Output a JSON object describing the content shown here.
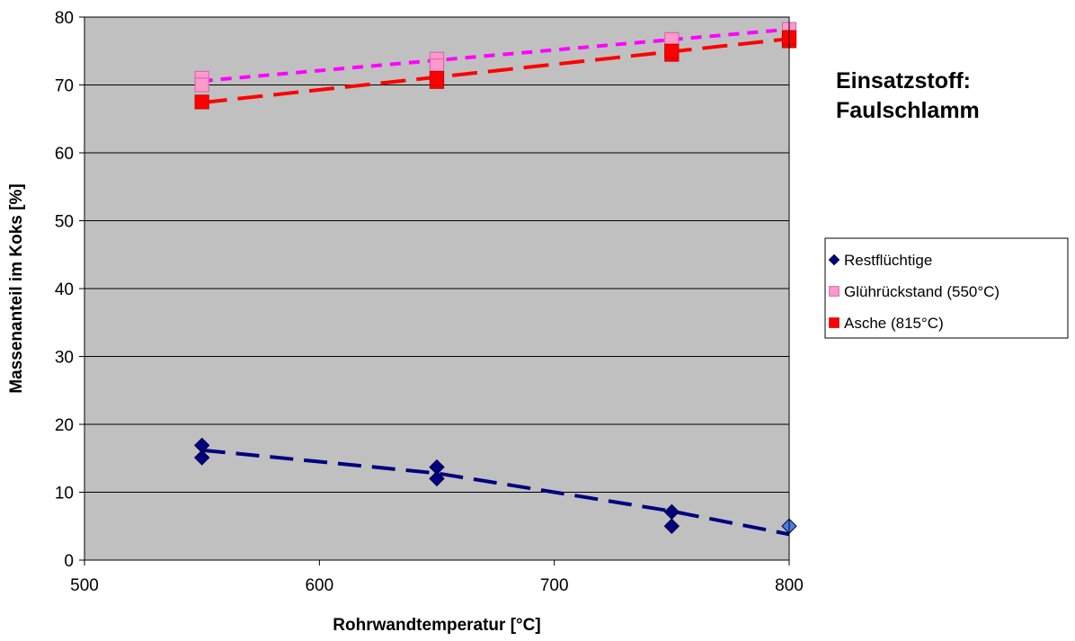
{
  "chart_data": {
    "type": "scatter",
    "title": "",
    "xlabel": "Rohrwandtemperatur [°C]",
    "ylabel": "Massenanteil im Koks [%]",
    "xlim": [
      500,
      800
    ],
    "ylim": [
      0,
      80
    ],
    "xticks": [
      "500",
      "600",
      "700",
      "800"
    ],
    "yticks": [
      "0",
      "10",
      "20",
      "30",
      "40",
      "50",
      "60",
      "70",
      "80"
    ],
    "grid": "horizontal",
    "plot_background": "#c0c0c0",
    "legend_position": "right",
    "annotation": [
      "Einsatzstoff:",
      "Faulschlamm"
    ],
    "series": [
      {
        "name": "Restflüchtige",
        "marker": "diamond",
        "color": "#000080",
        "points": [
          [
            550,
            16.9
          ],
          [
            550,
            15.1
          ],
          [
            650,
            13.7
          ],
          [
            650,
            12.0
          ],
          [
            750,
            7.1
          ],
          [
            750,
            5.0
          ],
          [
            800,
            5.0
          ]
        ],
        "trend": [
          [
            550,
            16.2
          ],
          [
            650,
            12.8
          ],
          [
            750,
            7.2
          ],
          [
            800,
            3.8
          ]
        ],
        "trend_color": "#000080"
      },
      {
        "name": "Glührückstand (550°C)",
        "marker": "square",
        "color": "#ff99cc",
        "points": [
          [
            550,
            71.0
          ],
          [
            550,
            70.0
          ],
          [
            650,
            73.8
          ],
          [
            650,
            72.8
          ],
          [
            750,
            76.7
          ],
          [
            800,
            78.2
          ]
        ],
        "trend": [
          [
            550,
            70.6
          ],
          [
            800,
            78.2
          ]
        ],
        "trend_color": "#ff00ff"
      },
      {
        "name": "Asche (815°C)",
        "marker": "square",
        "color": "#ff0000",
        "points": [
          [
            550,
            67.5
          ],
          [
            650,
            70.5
          ],
          [
            650,
            71.0
          ],
          [
            750,
            74.5
          ],
          [
            750,
            75.0
          ],
          [
            800,
            76.5
          ],
          [
            800,
            77.0
          ]
        ],
        "trend": [
          [
            550,
            67.4
          ],
          [
            800,
            76.8
          ]
        ],
        "trend_color": "#ff0000"
      }
    ]
  }
}
